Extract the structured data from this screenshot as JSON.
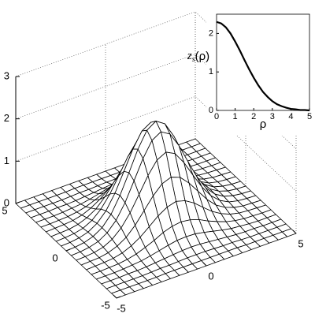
{
  "chart_data": [
    {
      "type": "surface",
      "x": [
        -5,
        -4.5,
        -4,
        -3.5,
        -3,
        -2.5,
        -2,
        -1.5,
        -1,
        -0.5,
        0,
        0.5,
        1,
        1.5,
        2,
        2.5,
        3,
        3.5,
        4,
        4.5,
        5
      ],
      "y": [
        -5,
        -4.5,
        -4,
        -3.5,
        -3,
        -2.5,
        -2,
        -1.5,
        -1,
        -0.5,
        0,
        0.5,
        1,
        1.5,
        2,
        2.5,
        3,
        3.5,
        4,
        4.5,
        5
      ],
      "z": [
        [
          0,
          0,
          0,
          0,
          0,
          0,
          0,
          0,
          0,
          0,
          0,
          0,
          0,
          0,
          0,
          0,
          0,
          0,
          0,
          0,
          0
        ],
        [
          0,
          0,
          0,
          0,
          0,
          0,
          0.01,
          0.01,
          0.01,
          0.01,
          0.01,
          0.01,
          0.01,
          0.01,
          0.01,
          0,
          0,
          0,
          0,
          0,
          0
        ],
        [
          0,
          0,
          0,
          0,
          0,
          0.01,
          0.02,
          0.02,
          0.03,
          0.04,
          0.04,
          0.04,
          0.03,
          0.02,
          0.02,
          0.01,
          0,
          0,
          0,
          0,
          0
        ],
        [
          0,
          0,
          0,
          0.01,
          0.01,
          0.02,
          0.04,
          0.06,
          0.08,
          0.1,
          0.11,
          0.1,
          0.08,
          0.06,
          0.04,
          0.02,
          0.01,
          0.01,
          0,
          0,
          0
        ],
        [
          0,
          0,
          0,
          0.01,
          0.03,
          0.05,
          0.09,
          0.14,
          0.19,
          0.23,
          0.24,
          0.23,
          0.19,
          0.14,
          0.09,
          0.05,
          0.03,
          0.01,
          0,
          0,
          0
        ],
        [
          0,
          0,
          0.01,
          0.02,
          0.05,
          0.1,
          0.18,
          0.27,
          0.38,
          0.45,
          0.48,
          0.45,
          0.38,
          0.27,
          0.18,
          0.1,
          0.05,
          0.02,
          0.01,
          0,
          0
        ],
        [
          0,
          0.01,
          0.02,
          0.04,
          0.09,
          0.18,
          0.31,
          0.48,
          0.66,
          0.79,
          0.85,
          0.79,
          0.66,
          0.48,
          0.31,
          0.18,
          0.09,
          0.04,
          0.02,
          0.01,
          0
        ],
        [
          0,
          0.01,
          0.02,
          0.06,
          0.14,
          0.27,
          0.48,
          0.75,
          1.02,
          1.23,
          1.31,
          1.23,
          1.02,
          0.75,
          0.48,
          0.27,
          0.14,
          0.06,
          0.02,
          0.01,
          0
        ],
        [
          0,
          0.01,
          0.03,
          0.08,
          0.19,
          0.38,
          0.66,
          1.02,
          1.39,
          1.68,
          1.79,
          1.68,
          1.39,
          1.02,
          0.66,
          0.38,
          0.19,
          0.08,
          0.03,
          0.01,
          0
        ],
        [
          0,
          0.01,
          0.04,
          0.1,
          0.23,
          0.45,
          0.79,
          1.23,
          1.68,
          2.03,
          2.16,
          2.03,
          1.68,
          1.23,
          0.79,
          0.45,
          0.23,
          0.1,
          0.04,
          0.01,
          0
        ],
        [
          0,
          0.01,
          0.04,
          0.11,
          0.24,
          0.48,
          0.85,
          1.31,
          1.79,
          2.16,
          2.3,
          2.16,
          1.79,
          1.31,
          0.85,
          0.48,
          0.24,
          0.11,
          0.04,
          0.01,
          0
        ],
        [
          0,
          0.01,
          0.04,
          0.1,
          0.23,
          0.45,
          0.79,
          1.23,
          1.68,
          2.03,
          2.16,
          2.03,
          1.68,
          1.23,
          0.79,
          0.45,
          0.23,
          0.1,
          0.04,
          0.01,
          0
        ],
        [
          0,
          0.01,
          0.03,
          0.08,
          0.19,
          0.38,
          0.66,
          1.02,
          1.39,
          1.68,
          1.79,
          1.68,
          1.39,
          1.02,
          0.66,
          0.38,
          0.19,
          0.08,
          0.03,
          0.01,
          0
        ],
        [
          0,
          0.01,
          0.02,
          0.06,
          0.14,
          0.27,
          0.48,
          0.75,
          1.02,
          1.23,
          1.31,
          1.23,
          1.02,
          0.75,
          0.48,
          0.27,
          0.14,
          0.06,
          0.02,
          0.01,
          0
        ],
        [
          0,
          0.01,
          0.02,
          0.04,
          0.09,
          0.18,
          0.31,
          0.48,
          0.66,
          0.79,
          0.85,
          0.79,
          0.66,
          0.48,
          0.31,
          0.18,
          0.09,
          0.04,
          0.02,
          0.01,
          0
        ],
        [
          0,
          0,
          0.01,
          0.02,
          0.05,
          0.1,
          0.18,
          0.27,
          0.38,
          0.45,
          0.48,
          0.45,
          0.38,
          0.27,
          0.18,
          0.1,
          0.05,
          0.02,
          0.01,
          0,
          0
        ],
        [
          0,
          0,
          0,
          0.01,
          0.03,
          0.05,
          0.09,
          0.14,
          0.19,
          0.23,
          0.24,
          0.23,
          0.19,
          0.14,
          0.09,
          0.05,
          0.03,
          0.01,
          0,
          0,
          0
        ],
        [
          0,
          0,
          0,
          0.01,
          0.01,
          0.02,
          0.04,
          0.06,
          0.08,
          0.1,
          0.11,
          0.1,
          0.08,
          0.06,
          0.04,
          0.02,
          0.01,
          0.01,
          0,
          0,
          0
        ],
        [
          0,
          0,
          0,
          0,
          0,
          0.01,
          0.02,
          0.02,
          0.03,
          0.04,
          0.04,
          0.04,
          0.03,
          0.02,
          0.02,
          0.01,
          0,
          0,
          0,
          0,
          0
        ],
        [
          0,
          0,
          0,
          0,
          0,
          0,
          0.01,
          0.01,
          0.01,
          0.01,
          0.01,
          0.01,
          0.01,
          0.01,
          0.01,
          0,
          0,
          0,
          0,
          0,
          0
        ],
        [
          0,
          0,
          0,
          0,
          0,
          0,
          0,
          0,
          0,
          0,
          0,
          0,
          0,
          0,
          0,
          0,
          0,
          0,
          0,
          0,
          0
        ]
      ],
      "xlim": [
        -5,
        5
      ],
      "xticks": [
        -5,
        0,
        5
      ],
      "ylim": [
        -5,
        5
      ],
      "yticks": [
        -5,
        0,
        5
      ],
      "zlim": [
        0,
        3
      ],
      "zticks": [
        0,
        1,
        2,
        3
      ],
      "grid": true,
      "color": "#000000"
    },
    {
      "type": "line",
      "xlabel": "ρ",
      "ylabel": [
        "z",
        "s",
        "(ρ)"
      ],
      "x": [
        0,
        0.25,
        0.5,
        0.75,
        1,
        1.25,
        1.5,
        1.75,
        2,
        2.25,
        2.5,
        2.75,
        3,
        3.25,
        3.5,
        3.75,
        4,
        4.25,
        4.5,
        4.75,
        5
      ],
      "values": [
        2.3,
        2.26,
        2.16,
        2.0,
        1.79,
        1.56,
        1.31,
        1.07,
        0.85,
        0.65,
        0.48,
        0.35,
        0.24,
        0.16,
        0.11,
        0.07,
        0.04,
        0.03,
        0.01,
        0.01,
        0
      ],
      "xlim": [
        0,
        5
      ],
      "xticks": [
        0,
        1,
        2,
        3,
        4,
        5
      ],
      "ylim": [
        0,
        2.5
      ],
      "yticks": [
        0,
        1,
        2
      ],
      "color": "#000000"
    }
  ]
}
